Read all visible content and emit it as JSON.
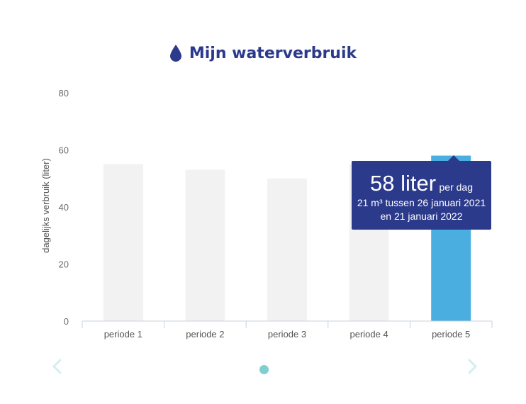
{
  "header": {
    "title": "Mijn waterverbruik",
    "icon": "water-drop-icon"
  },
  "chart_data": {
    "type": "bar",
    "categories": [
      "periode 1",
      "periode 2",
      "periode 3",
      "periode 4",
      "periode 5"
    ],
    "values": [
      55,
      53,
      50,
      55,
      58
    ],
    "ylabel": "dagelijks verbruik (liter)",
    "xlabel": "",
    "ylim": [
      0,
      80
    ],
    "yticks": [
      0,
      20,
      40,
      60,
      80
    ],
    "highlighted_index": 4,
    "colors": {
      "default_bar": "#f2f2f2",
      "highlight_bar": "#4baee0",
      "axis": "#c9d3dd"
    }
  },
  "tooltip": {
    "value": "58 liter",
    "unit": "per dag",
    "line1": "21 m³ tussen 26 januari 2021",
    "line2": "en 21 januari 2022"
  },
  "colors": {
    "title": "#2c3a8c",
    "tooltip_bg": "#2c3a8c",
    "pager_dot": "#7fcfd0",
    "nav_arrow": "#d4eef0"
  },
  "navigation": {
    "prev_icon": "chevron-left-icon",
    "next_icon": "chevron-right-icon",
    "pager_icon": "pager-dot-icon"
  }
}
